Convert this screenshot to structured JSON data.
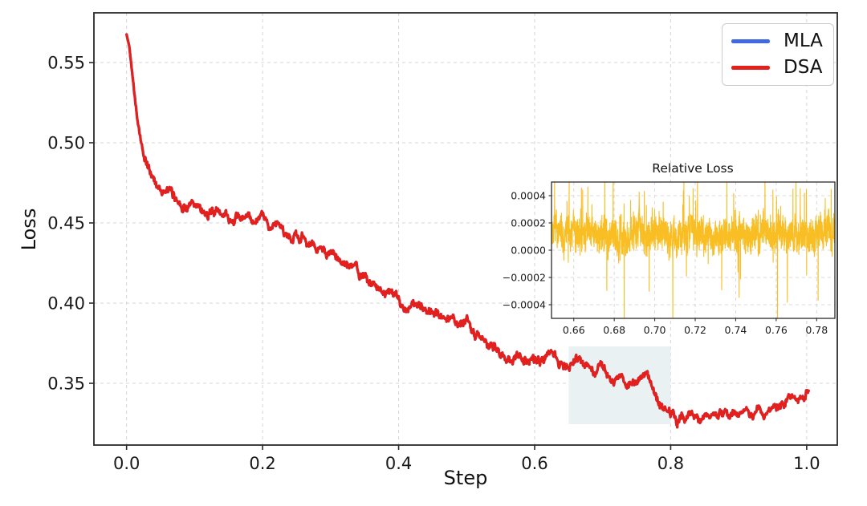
{
  "figure": {
    "background": "#ffffff"
  },
  "chart_data": [
    {
      "id": "main-loss-chart",
      "type": "line",
      "xlabel": "Step",
      "ylabel": "Loss",
      "xlim": [
        -0.048,
        1.045
      ],
      "ylim": [
        0.3115,
        0.581
      ],
      "grid": true,
      "grid_style": "dashed",
      "grid_color": "#d4d4d4",
      "xticks": {
        "values": [
          0.0,
          0.2,
          0.4,
          0.6,
          0.8,
          1.0
        ],
        "labels": [
          "0.0",
          "0.2",
          "0.4",
          "0.6",
          "0.8",
          "1.0"
        ]
      },
      "yticks": {
        "values": [
          0.35,
          0.4,
          0.45,
          0.5,
          0.55
        ],
        "labels": [
          "0.35",
          "0.40",
          "0.45",
          "0.50",
          "0.55"
        ]
      },
      "legend": {
        "position": "upper-right",
        "items": [
          {
            "name": "MLA",
            "color": "#4169E1"
          },
          {
            "name": "DSA",
            "color": "#E3201B"
          }
        ]
      },
      "highlight_region": {
        "x": [
          0.65,
          0.8
        ],
        "y": [
          0.3245,
          0.373
        ],
        "color": "#E9F1F3"
      },
      "series": [
        {
          "name": "MLA",
          "color": "#4169E1",
          "linewidth": 3.2,
          "samples": 1600,
          "anchors": "same-as-DSA",
          "noise": {
            "walk": 0.0035,
            "persistence": 0.9,
            "white": 0.0022,
            "ramp_in": 0.025
          },
          "note": "MLA curve coincides with DSA curve and is hidden beneath it"
        },
        {
          "name": "DSA",
          "color": "#E3201B",
          "linewidth": 3.2,
          "samples": 1600,
          "anchors": [
            [
              0.0,
              0.5675
            ],
            [
              0.004,
              0.56
            ],
            [
              0.008,
              0.545
            ],
            [
              0.013,
              0.527
            ],
            [
              0.018,
              0.509
            ],
            [
              0.024,
              0.494
            ],
            [
              0.032,
              0.483
            ],
            [
              0.042,
              0.476
            ],
            [
              0.055,
              0.47
            ],
            [
              0.075,
              0.4645
            ],
            [
              0.1,
              0.46
            ],
            [
              0.13,
              0.4565
            ],
            [
              0.16,
              0.4525
            ],
            [
              0.19,
              0.45
            ],
            [
              0.22,
              0.4475
            ],
            [
              0.25,
              0.4435
            ],
            [
              0.27,
              0.438
            ],
            [
              0.3,
              0.429
            ],
            [
              0.33,
              0.4215
            ],
            [
              0.36,
              0.4135
            ],
            [
              0.385,
              0.4065
            ],
            [
              0.41,
              0.4
            ],
            [
              0.44,
              0.3955
            ],
            [
              0.47,
              0.392
            ],
            [
              0.5,
              0.389
            ],
            [
              0.515,
              0.38
            ],
            [
              0.53,
              0.3725
            ],
            [
              0.55,
              0.369
            ],
            [
              0.58,
              0.3665
            ],
            [
              0.62,
              0.3655
            ],
            [
              0.65,
              0.3635
            ],
            [
              0.68,
              0.36
            ],
            [
              0.705,
              0.3575
            ],
            [
              0.72,
              0.3545
            ],
            [
              0.74,
              0.352
            ],
            [
              0.757,
              0.353
            ],
            [
              0.766,
              0.355
            ],
            [
              0.776,
              0.343
            ],
            [
              0.79,
              0.334
            ],
            [
              0.81,
              0.3295
            ],
            [
              0.84,
              0.328
            ],
            [
              0.87,
              0.3285
            ],
            [
              0.9,
              0.33
            ],
            [
              0.93,
              0.3325
            ],
            [
              0.96,
              0.337
            ],
            [
              0.985,
              0.342
            ],
            [
              1.003,
              0.344
            ]
          ],
          "noise": {
            "walk": 0.0035,
            "persistence": 0.9,
            "white": 0.0022,
            "ramp_in": 0.025
          }
        }
      ]
    },
    {
      "id": "inset-relative-loss-chart",
      "type": "line",
      "title": "Relative Loss",
      "xlim": [
        0.649,
        0.789
      ],
      "ylim": [
        -0.0005,
        0.0005
      ],
      "grid": true,
      "grid_style": "dashed",
      "grid_color": "#d8d8d8",
      "xticks": {
        "values": [
          0.66,
          0.68,
          0.7,
          0.72,
          0.74,
          0.76,
          0.78
        ],
        "labels": [
          "0.66",
          "0.68",
          "0.70",
          "0.72",
          "0.74",
          "0.76",
          "0.78"
        ]
      },
      "yticks": {
        "values": [
          -0.0004,
          -0.0002,
          0.0,
          0.0002,
          0.0004
        ],
        "labels": [
          "−0.0004",
          "−0.0002",
          "0.0000",
          "0.0002",
          "0.0004"
        ]
      },
      "series": [
        {
          "name": "relative loss (MLA vs DSA)",
          "color": "#F9BE23",
          "linewidth": 1.1,
          "samples": 2300,
          "baseline": 0.00012,
          "noise": {
            "walk": 7e-05,
            "persistence": 0.88,
            "white": 0.0002
          },
          "spikes": {
            "up_prob": 0.02,
            "up_min": 0.0001,
            "up_max": 0.00042,
            "down_prob": 0.012,
            "down_min": 0.00012,
            "down_max": 0.0006
          }
        }
      ]
    }
  ]
}
